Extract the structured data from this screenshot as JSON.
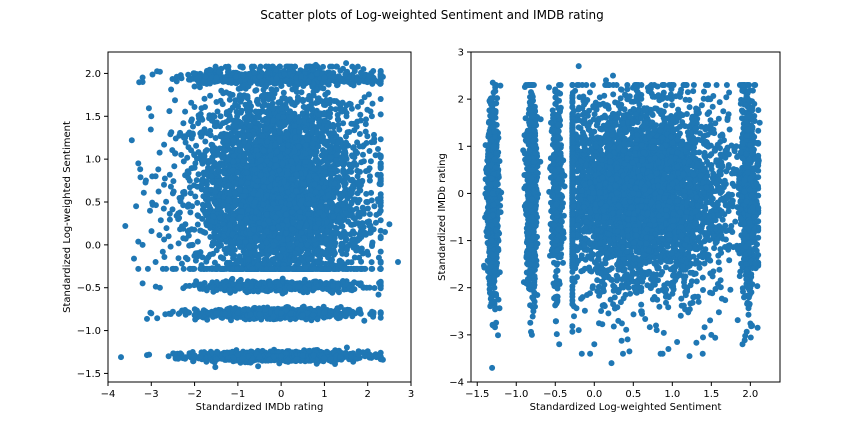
{
  "figure": {
    "suptitle": "Scatter plots of Log-weighted Sentiment and IMDB rating"
  },
  "chart_data": [
    {
      "type": "scatter",
      "title": "",
      "xlabel": "Standardized IMDb rating",
      "ylabel": "Standardized Log-weighted Sentiment",
      "xlim": [
        -4.0,
        3.0
      ],
      "ylim": [
        -1.6,
        2.25
      ],
      "xticks": [
        -4,
        -3,
        -2,
        -1,
        0,
        1,
        2,
        3
      ],
      "xtick_labels": [
        "−4",
        "−3",
        "−2",
        "−1",
        "0",
        "1",
        "2",
        "3"
      ],
      "yticks": [
        -1.5,
        -1.0,
        -0.5,
        0.0,
        0.5,
        1.0,
        1.5,
        2.0
      ],
      "ytick_labels": [
        "−1.5",
        "−1.0",
        "−0.5",
        "0.0",
        "0.5",
        "1.0",
        "1.5",
        "2.0"
      ],
      "color": "#1f77b4",
      "series": [
        {
          "values_xy": [
            [
              -3.7,
              -1.31
            ],
            [
              -3.05,
              -1.28
            ],
            [
              -2.6,
              -1.3
            ],
            [
              -2.0,
              -1.29
            ],
            [
              -1.5,
              -1.33
            ],
            [
              -1.0,
              -1.28
            ],
            [
              -0.5,
              -1.31
            ],
            [
              0.0,
              -1.3
            ],
            [
              0.5,
              -1.29
            ],
            [
              1.0,
              -1.32
            ],
            [
              1.5,
              -1.27
            ],
            [
              2.2,
              -1.31
            ],
            [
              2.35,
              -1.34
            ],
            [
              -3.0,
              -0.8
            ],
            [
              -2.5,
              -0.78
            ],
            [
              -2.0,
              -0.82
            ],
            [
              -1.5,
              -0.8
            ],
            [
              -1.0,
              -0.79
            ],
            [
              -0.5,
              -0.81
            ],
            [
              0.0,
              -0.8
            ],
            [
              0.5,
              -0.82
            ],
            [
              1.0,
              -0.79
            ],
            [
              1.5,
              -0.8
            ],
            [
              2.1,
              -0.78
            ],
            [
              2.3,
              -0.85
            ],
            [
              -3.2,
              -0.45
            ],
            [
              -2.8,
              -0.5
            ],
            [
              -2.2,
              -0.48
            ],
            [
              -1.6,
              -0.5
            ],
            [
              -0.8,
              -0.47
            ],
            [
              0.2,
              -0.5
            ],
            [
              1.2,
              -0.48
            ],
            [
              1.9,
              -0.5
            ],
            [
              2.3,
              -0.43
            ],
            [
              2.25,
              -0.58
            ],
            [
              -3.35,
              0.45
            ],
            [
              -3.2,
              0.0
            ],
            [
              -3.6,
              0.22
            ],
            [
              -2.9,
              0.8
            ],
            [
              -3.0,
              1.5
            ],
            [
              -3.2,
              1.9
            ],
            [
              -2.8,
              2.02
            ],
            [
              -2.0,
              2.0
            ],
            [
              -1.5,
              1.95
            ],
            [
              -0.5,
              2.05
            ],
            [
              0.2,
              2.08
            ],
            [
              0.8,
              2.1
            ],
            [
              1.5,
              2.12
            ],
            [
              1.9,
              2.05
            ],
            [
              2.35,
              1.96
            ],
            [
              -3.45,
              1.22
            ],
            [
              -3.3,
              0.95
            ],
            [
              -2.5,
              0.6
            ],
            [
              -2.0,
              0.9
            ],
            [
              -1.7,
              1.3
            ],
            [
              -1.2,
              0.7
            ],
            [
              -0.8,
              0.3
            ],
            [
              -0.4,
              1.1
            ],
            [
              0.0,
              0.5
            ],
            [
              0.4,
              0.9
            ],
            [
              0.8,
              0.2
            ],
            [
              1.2,
              1.4
            ],
            [
              1.6,
              0.6
            ],
            [
              2.0,
              0.5
            ],
            [
              2.2,
              0.35
            ],
            [
              2.4,
              0.15
            ],
            [
              2.7,
              -0.2
            ],
            [
              2.5,
              0.24
            ],
            [
              2.05,
              0.75
            ],
            [
              2.15,
              1.2
            ],
            [
              1.8,
              -0.15
            ],
            [
              -2.6,
              0.1
            ],
            [
              -2.2,
              -0.15
            ],
            [
              -1.4,
              0.05
            ],
            [
              -0.6,
              -0.1
            ],
            [
              0.6,
              0.0
            ],
            [
              1.4,
              -0.2
            ],
            [
              -3.4,
              -0.16
            ],
            [
              -2.9,
              -0.2
            ]
          ]
        }
      ]
    },
    {
      "type": "scatter",
      "title": "",
      "xlabel": "Standardized Log-weighted Sentiment",
      "ylabel": "Standardized IMDb rating",
      "xlim": [
        -1.58,
        2.38
      ],
      "ylim": [
        -4.0,
        3.0
      ],
      "xticks": [
        -1.5,
        -1.0,
        -0.5,
        0.0,
        0.5,
        1.0,
        1.5,
        2.0
      ],
      "xtick_labels": [
        "−1.5",
        "−1.0",
        "−0.5",
        "0.0",
        "0.5",
        "1.0",
        "1.5",
        "2.0"
      ],
      "yticks": [
        -4,
        -3,
        -2,
        -1,
        0,
        1,
        2,
        3
      ],
      "ytick_labels": [
        "−4",
        "−3",
        "−2",
        "−1",
        "0",
        "1",
        "2",
        "3"
      ],
      "color": "#1f77b4",
      "series": [
        {
          "values_xy": [
            [
              -1.31,
              -3.7
            ],
            [
              -1.3,
              -2.8
            ],
            [
              -1.28,
              -2.0
            ],
            [
              -1.32,
              -1.0
            ],
            [
              -1.3,
              0.0
            ],
            [
              -1.29,
              1.0
            ],
            [
              -1.33,
              2.0
            ],
            [
              -1.3,
              2.35
            ],
            [
              -1.27,
              2.25
            ],
            [
              -1.35,
              1.5
            ],
            [
              -0.8,
              -3.0
            ],
            [
              -0.78,
              -2.5
            ],
            [
              -0.82,
              -1.5
            ],
            [
              -0.8,
              -0.5
            ],
            [
              -0.79,
              0.5
            ],
            [
              -0.81,
              1.5
            ],
            [
              -0.8,
              2.1
            ],
            [
              -0.85,
              2.3
            ],
            [
              -0.45,
              -3.2
            ],
            [
              -0.5,
              -2.2
            ],
            [
              -0.48,
              -1.0
            ],
            [
              -0.5,
              0.2
            ],
            [
              -0.47,
              1.2
            ],
            [
              -0.5,
              1.9
            ],
            [
              -0.43,
              2.3
            ],
            [
              -0.58,
              2.25
            ],
            [
              0.45,
              -3.35
            ],
            [
              0.0,
              -3.2
            ],
            [
              0.22,
              -3.6
            ],
            [
              0.8,
              -2.9
            ],
            [
              1.5,
              -3.0
            ],
            [
              1.9,
              -3.2
            ],
            [
              2.02,
              -2.8
            ],
            [
              2.0,
              -2.0
            ],
            [
              1.95,
              -1.5
            ],
            [
              2.05,
              -0.5
            ],
            [
              2.08,
              0.2
            ],
            [
              2.1,
              0.8
            ],
            [
              2.12,
              1.5
            ],
            [
              2.05,
              1.9
            ],
            [
              1.96,
              2.0
            ],
            [
              1.22,
              -3.45
            ],
            [
              0.95,
              -3.3
            ],
            [
              0.6,
              -2.5
            ],
            [
              0.9,
              -2.0
            ],
            [
              1.3,
              -1.7
            ],
            [
              0.7,
              -1.2
            ],
            [
              0.3,
              -0.8
            ],
            [
              1.1,
              -0.4
            ],
            [
              0.5,
              0.0
            ],
            [
              0.9,
              0.4
            ],
            [
              0.2,
              0.8
            ],
            [
              1.4,
              1.2
            ],
            [
              0.6,
              1.6
            ],
            [
              0.35,
              2.2
            ],
            [
              0.15,
              2.4
            ],
            [
              -0.2,
              2.7
            ],
            [
              0.24,
              2.5
            ],
            [
              0.75,
              2.05
            ],
            [
              1.2,
              2.15
            ],
            [
              1.7,
              2.3
            ],
            [
              0.1,
              -1.5
            ],
            [
              -0.15,
              -2.2
            ],
            [
              0.05,
              -1.4
            ],
            [
              -0.1,
              -0.6
            ],
            [
              0.0,
              0.6
            ],
            [
              -0.2,
              1.4
            ],
            [
              -0.16,
              -3.4
            ],
            [
              -0.2,
              -2.9
            ]
          ]
        }
      ]
    }
  ]
}
